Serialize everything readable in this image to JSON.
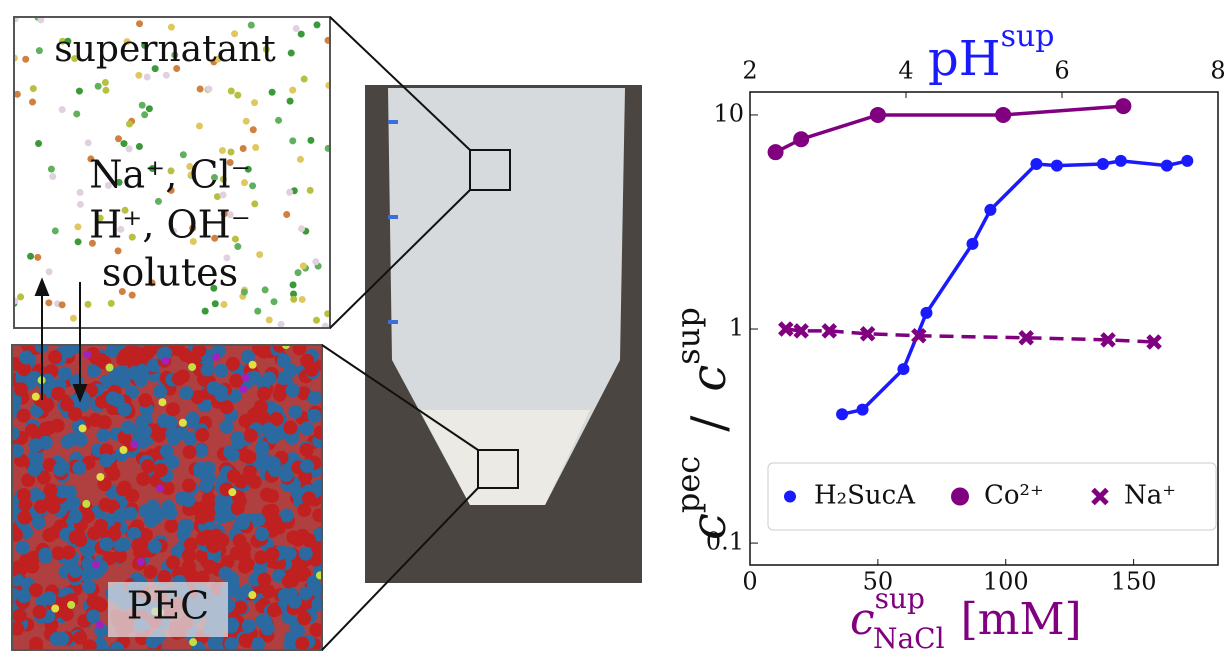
{
  "chart_data": {
    "type": "line",
    "xlabel": [
      "c",
      "sup",
      "NaCl",
      "[mM]"
    ],
    "x2label": [
      "pH",
      "sup"
    ],
    "ylabel": [
      "c",
      "pec",
      "/",
      "c",
      "sup"
    ],
    "xlim": [
      0,
      183
    ],
    "xticks": [
      0,
      50,
      100,
      150
    ],
    "x2lim": [
      2,
      8
    ],
    "x2ticks": [
      2,
      4,
      6,
      8
    ],
    "ylim": [
      0.079,
      12.8
    ],
    "yticks": [
      0.1,
      1,
      10
    ],
    "log_y": true,
    "legend": "lower right",
    "series": [
      {
        "name": "H₂SucA",
        "color": "#1a1aff",
        "marker": "circle",
        "dash": false,
        "x": [
          36,
          44,
          60,
          69,
          87,
          94,
          112,
          120,
          138,
          145,
          163,
          171
        ],
        "values": [
          0.4,
          0.42,
          0.65,
          1.19,
          2.5,
          3.6,
          5.9,
          5.8,
          5.9,
          6.1,
          5.8,
          6.1
        ]
      },
      {
        "name": "Co²⁺",
        "color": "#800080",
        "marker": "bigcircle",
        "dash": false,
        "x": [
          10,
          20,
          50,
          99,
          146
        ],
        "values": [
          6.7,
          7.7,
          10,
          10,
          11
        ]
      },
      {
        "name": "Na⁺",
        "color": "#800080",
        "marker": "x",
        "dash": true,
        "x": [
          14,
          20,
          31,
          46,
          66,
          108,
          140,
          158
        ],
        "values": [
          1.0,
          0.98,
          0.98,
          0.95,
          0.93,
          0.91,
          0.89,
          0.87
        ]
      }
    ]
  },
  "illustration": {
    "supernatant": "supernatant",
    "ions1": "Na⁺, Cl⁻",
    "ions2": "H⁺, OH⁻",
    "solutes": "solutes",
    "pec": "PEC"
  }
}
